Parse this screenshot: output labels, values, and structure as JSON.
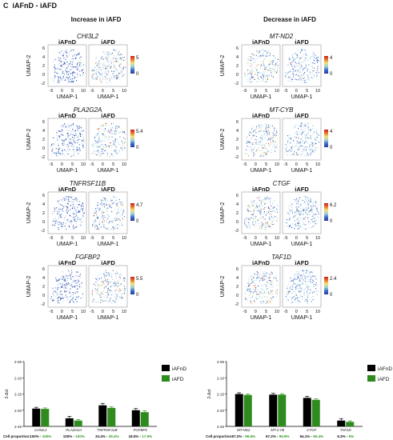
{
  "panel": {
    "label": "C",
    "title": "iAFnD - iAFD",
    "increase_title": "Increase in iAFD",
    "decrease_title": "Decrease in iAFD"
  },
  "umap_axes": {
    "xlabel": "UMAP-1",
    "ylabel": "UMAP-2",
    "xticks": [
      "-5",
      "0",
      "5",
      "10"
    ],
    "yticks": [
      "6",
      "4",
      "2",
      "0",
      "-2"
    ]
  },
  "umap_panels": [
    {
      "gene": "CHI3L2",
      "side": "increase",
      "groups": [
        "iAFnD",
        "iAFD"
      ],
      "scale_max": "5",
      "scale_min": "0"
    },
    {
      "gene": "PLA2G2A",
      "side": "increase",
      "groups": [
        "iAFnD",
        "iAFD"
      ],
      "scale_max": "5.4",
      "scale_min": "0"
    },
    {
      "gene": "TNFRSF11B",
      "side": "increase",
      "groups": [
        "iAFnD",
        "iAFD"
      ],
      "scale_max": "4.7",
      "scale_min": "0"
    },
    {
      "gene": "FGFBP2",
      "side": "increase",
      "groups": [
        "iAFnD",
        "iAFD"
      ],
      "scale_max": "5.5",
      "scale_min": "0"
    },
    {
      "gene": "MT-ND2",
      "side": "decrease",
      "groups": [
        "iAFnD",
        "iAFD"
      ],
      "scale_max": "4",
      "scale_min": "0"
    },
    {
      "gene": "MT-CYB",
      "side": "decrease",
      "groups": [
        "iAFnD",
        "iAFD"
      ],
      "scale_max": "4",
      "scale_min": "0"
    },
    {
      "gene": "CTGF",
      "side": "decrease",
      "groups": [
        "iAFnD",
        "iAFD"
      ],
      "scale_max": "6.2",
      "scale_min": "0"
    },
    {
      "gene": "TAF1D",
      "side": "decrease",
      "groups": [
        "iAFnD",
        "iAFD"
      ],
      "scale_max": "2.4",
      "scale_min": "0"
    }
  ],
  "colors": {
    "iAFnD": "#000000",
    "iAFD": "#2e8b1e",
    "green_text": "#2e9a1e",
    "scale": [
      "#2b3a9e",
      "#3b6cc4",
      "#9fd0d8",
      "#f4e27a",
      "#e8742a",
      "#c81f1f"
    ]
  },
  "chart_data": [
    {
      "type": "bar",
      "side": "increase",
      "categories": [
        "CHI3L2",
        "PLA2G2A",
        "TNFRSF11B",
        "FGFBP2"
      ],
      "ylabel": "2^-Δct",
      "yticks": [
        "2^-05",
        "2^-10",
        "2^-15",
        "2^-20",
        "2^-25"
      ],
      "ylim": [
        -25,
        -5
      ],
      "legend": "right",
      "series": [
        {
          "name": "iAFnD",
          "values": [
            -19.5,
            -22.5,
            -18.5,
            -20.0
          ],
          "errors": [
            0.4,
            0.6,
            0.6,
            0.5
          ]
        },
        {
          "name": "iAFD",
          "values": [
            -19.6,
            -23.2,
            -19.3,
            -20.6
          ],
          "errors": [
            0.3,
            0.3,
            0.3,
            0.4
          ]
        }
      ],
      "proportion_label": "Cell proportion:",
      "proportions": [
        {
          "a": "100%",
          "b": "100%"
        },
        {
          "a": "100%",
          "b": "100%"
        },
        {
          "a": "33.4%",
          "b": "29.4%"
        },
        {
          "a": "18.5%",
          "b": "17.9%"
        }
      ]
    },
    {
      "type": "bar",
      "side": "decrease",
      "categories": [
        "MT-ND2",
        "MT-CYB",
        "CTGF",
        "TAF1D"
      ],
      "ylabel": "2^-Δct",
      "yticks": [
        "2^-05",
        "2^-10",
        "2^-15",
        "2^-20",
        "2^-25"
      ],
      "ylim": [
        -25,
        -5
      ],
      "legend": "right",
      "series": [
        {
          "name": "iAFnD",
          "values": [
            -15.0,
            -15.2,
            -16.2,
            -23.2
          ],
          "errors": [
            0.4,
            0.4,
            0.5,
            0.6
          ]
        },
        {
          "name": "iAFD",
          "values": [
            -15.3,
            -15.2,
            -16.8,
            -23.6
          ],
          "errors": [
            0.3,
            0.3,
            0.3,
            0.3
          ]
        }
      ],
      "proportion_label": "Cell proportion:",
      "proportions": [
        {
          "a": "97.2%",
          "b": "96.8%"
        },
        {
          "a": "97.2%",
          "b": "96.8%"
        },
        {
          "a": "94.1%",
          "b": "90.4%"
        },
        {
          "a": "6.3%",
          "b": "5%"
        }
      ]
    }
  ]
}
